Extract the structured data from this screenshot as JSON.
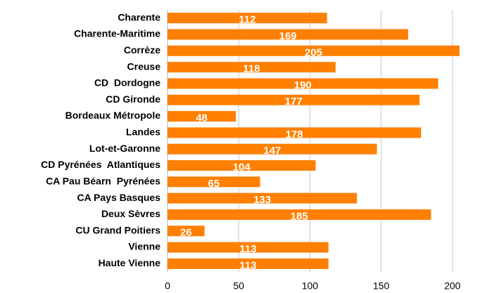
{
  "chart_data": {
    "type": "barh",
    "categories": [
      "Charente",
      "Charente-Maritime",
      "Corrèze",
      "Creuse",
      "CD  Dordogne",
      "CD Gironde",
      "Bordeaux Métropole",
      "Landes",
      "Lot-et-Garonne",
      "CD Pyrénées  Atlantiques",
      "CA Pau Béarn  Pyrénées",
      "CA Pays Basques",
      "Deux Sèvres",
      "CU Grand Poitiers",
      "Vienne",
      "Haute Vienne"
    ],
    "values": [
      112,
      169,
      205,
      118,
      190,
      177,
      48,
      178,
      147,
      104,
      65,
      133,
      185,
      26,
      113,
      113
    ],
    "color": "#ff7f00",
    "xlim": [
      0,
      210
    ],
    "xticks": [
      0,
      50,
      100,
      150,
      200
    ],
    "grid": true
  }
}
